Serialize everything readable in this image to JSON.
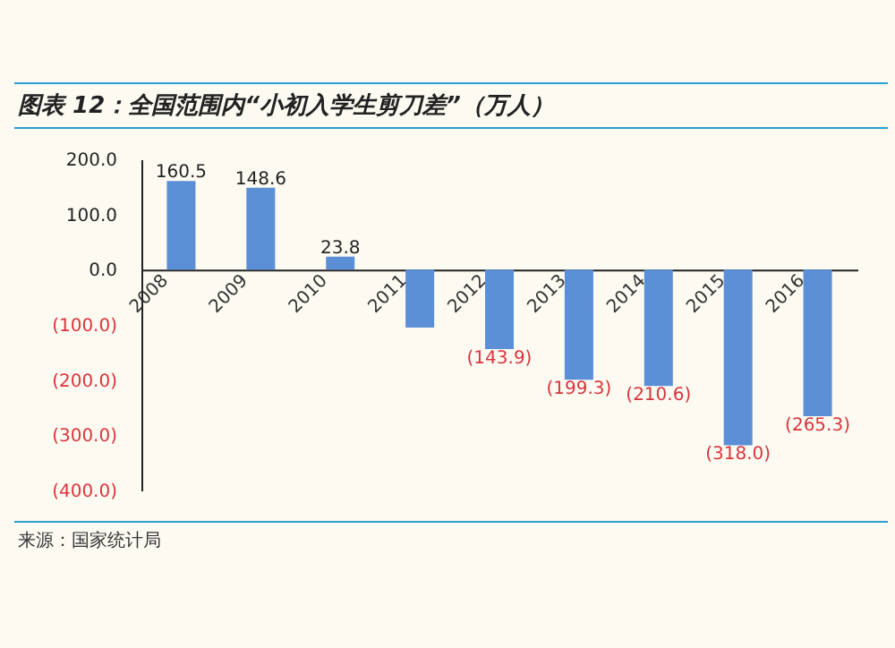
{
  "chart_data": {
    "type": "bar",
    "title": "图表 12：全国范围内“小初入学生剪刀差”（万人）",
    "categories": [
      "2008",
      "2009",
      "2010",
      "2011",
      "2012",
      "2013",
      "2014",
      "2015",
      "2016"
    ],
    "values": [
      160.5,
      148.6,
      23.8,
      -105,
      -143.9,
      -199.3,
      -210.6,
      -318.0,
      -265.3
    ],
    "value_labels": [
      "160.5",
      "148.6",
      "23.8",
      null,
      "(143.9)",
      "(199.3)",
      "(210.6)",
      "(318.0)",
      "(265.3)"
    ],
    "color": "#5b8fd6",
    "ylim": [
      -400,
      200
    ],
    "yticks": [
      {
        "value": 200,
        "label": "200.0"
      },
      {
        "value": 100,
        "label": "100.0"
      },
      {
        "value": 0,
        "label": "0.0"
      },
      {
        "value": -100,
        "label": "(100.0)"
      },
      {
        "value": -200,
        "label": "(200.0)"
      },
      {
        "value": -300,
        "label": "(300.0)"
      },
      {
        "value": -400,
        "label": "(400.0)"
      }
    ],
    "grid": false,
    "annotations": [
      "来源：国家统计局"
    ]
  }
}
